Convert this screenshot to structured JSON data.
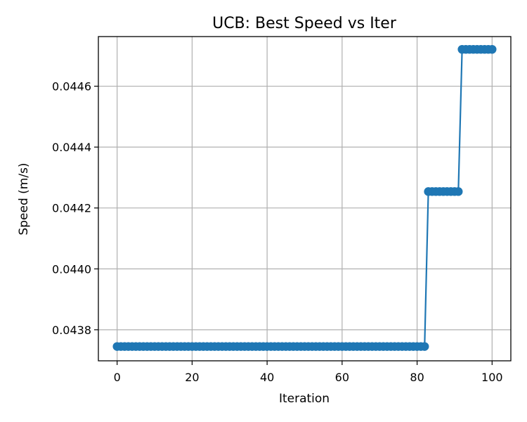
{
  "chart_data": {
    "type": "line",
    "title": "UCB: Best Speed vs Iter",
    "xlabel": "Iteration",
    "ylabel": "Speed (m/s)",
    "xlim": [
      -5,
      105
    ],
    "ylim": [
      0.043698,
      0.044763
    ],
    "xticks": [
      0,
      20,
      40,
      60,
      80,
      100
    ],
    "yticks": [
      0.0438,
      0.044,
      0.0442,
      0.0444,
      0.0446
    ],
    "xtick_labels": [
      "0",
      "20",
      "40",
      "60",
      "80",
      "100"
    ],
    "ytick_labels": [
      "0.0438",
      "0.0440",
      "0.0442",
      "0.0444",
      "0.0446"
    ],
    "grid": true,
    "marker": "circle",
    "color": "#1f77b4",
    "steps": [
      {
        "from": 0,
        "to": 82,
        "value": 0.043745
      },
      {
        "from": 83,
        "to": 91,
        "value": 0.044254
      },
      {
        "from": 92,
        "to": 100,
        "value": 0.044721
      }
    ]
  }
}
